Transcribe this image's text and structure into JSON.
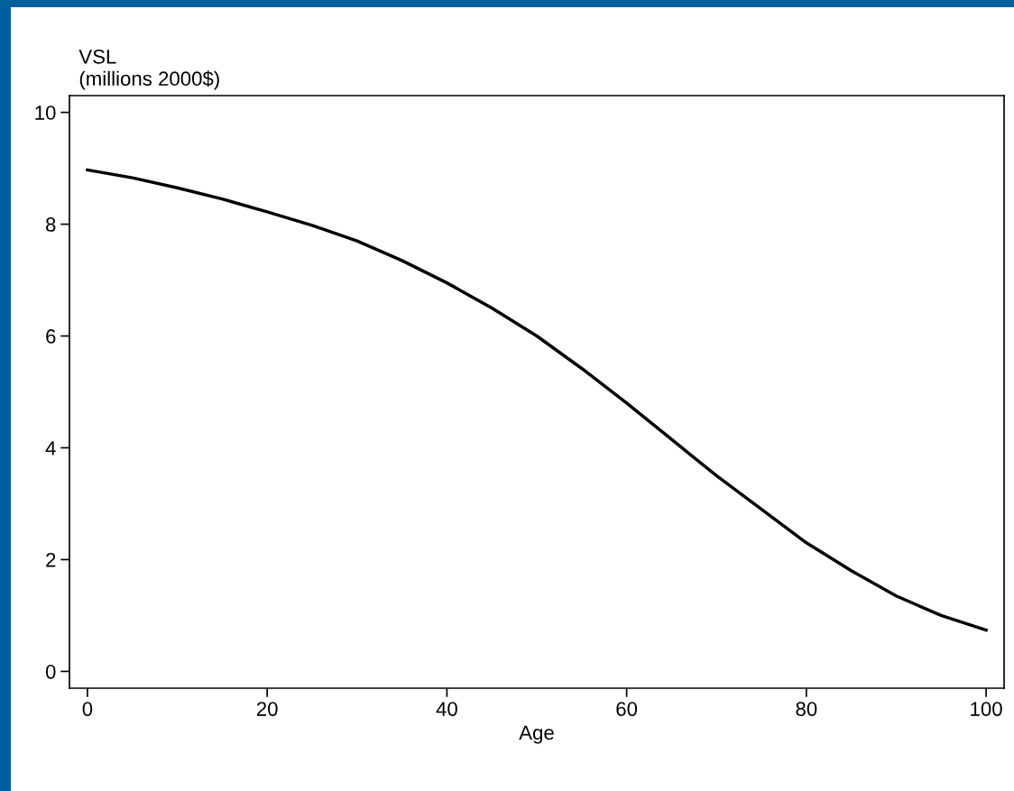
{
  "chart_data": {
    "type": "line",
    "ylabel": "VSL\n(millions 2000$)",
    "xlabel": "Age",
    "x": [
      0,
      5,
      10,
      15,
      20,
      25,
      30,
      35,
      40,
      45,
      50,
      55,
      60,
      65,
      70,
      75,
      80,
      85,
      90,
      95,
      100
    ],
    "series": [
      {
        "color": "#000000",
        "values": [
          8.97,
          8.83,
          8.65,
          8.45,
          8.22,
          7.98,
          7.7,
          7.35,
          6.95,
          6.5,
          6.0,
          5.42,
          4.8,
          4.15,
          3.5,
          2.9,
          2.3,
          1.8,
          1.35,
          1.0,
          0.74
        ]
      }
    ],
    "xlim": [
      -2,
      102
    ],
    "ylim": [
      -0.3,
      10.3
    ],
    "xticks": [
      0,
      20,
      40,
      60,
      80,
      100
    ],
    "yticks": [
      0,
      2,
      4,
      6,
      8,
      10
    ],
    "grid": false,
    "legend": false,
    "marker": "none",
    "line_style": "solid"
  }
}
